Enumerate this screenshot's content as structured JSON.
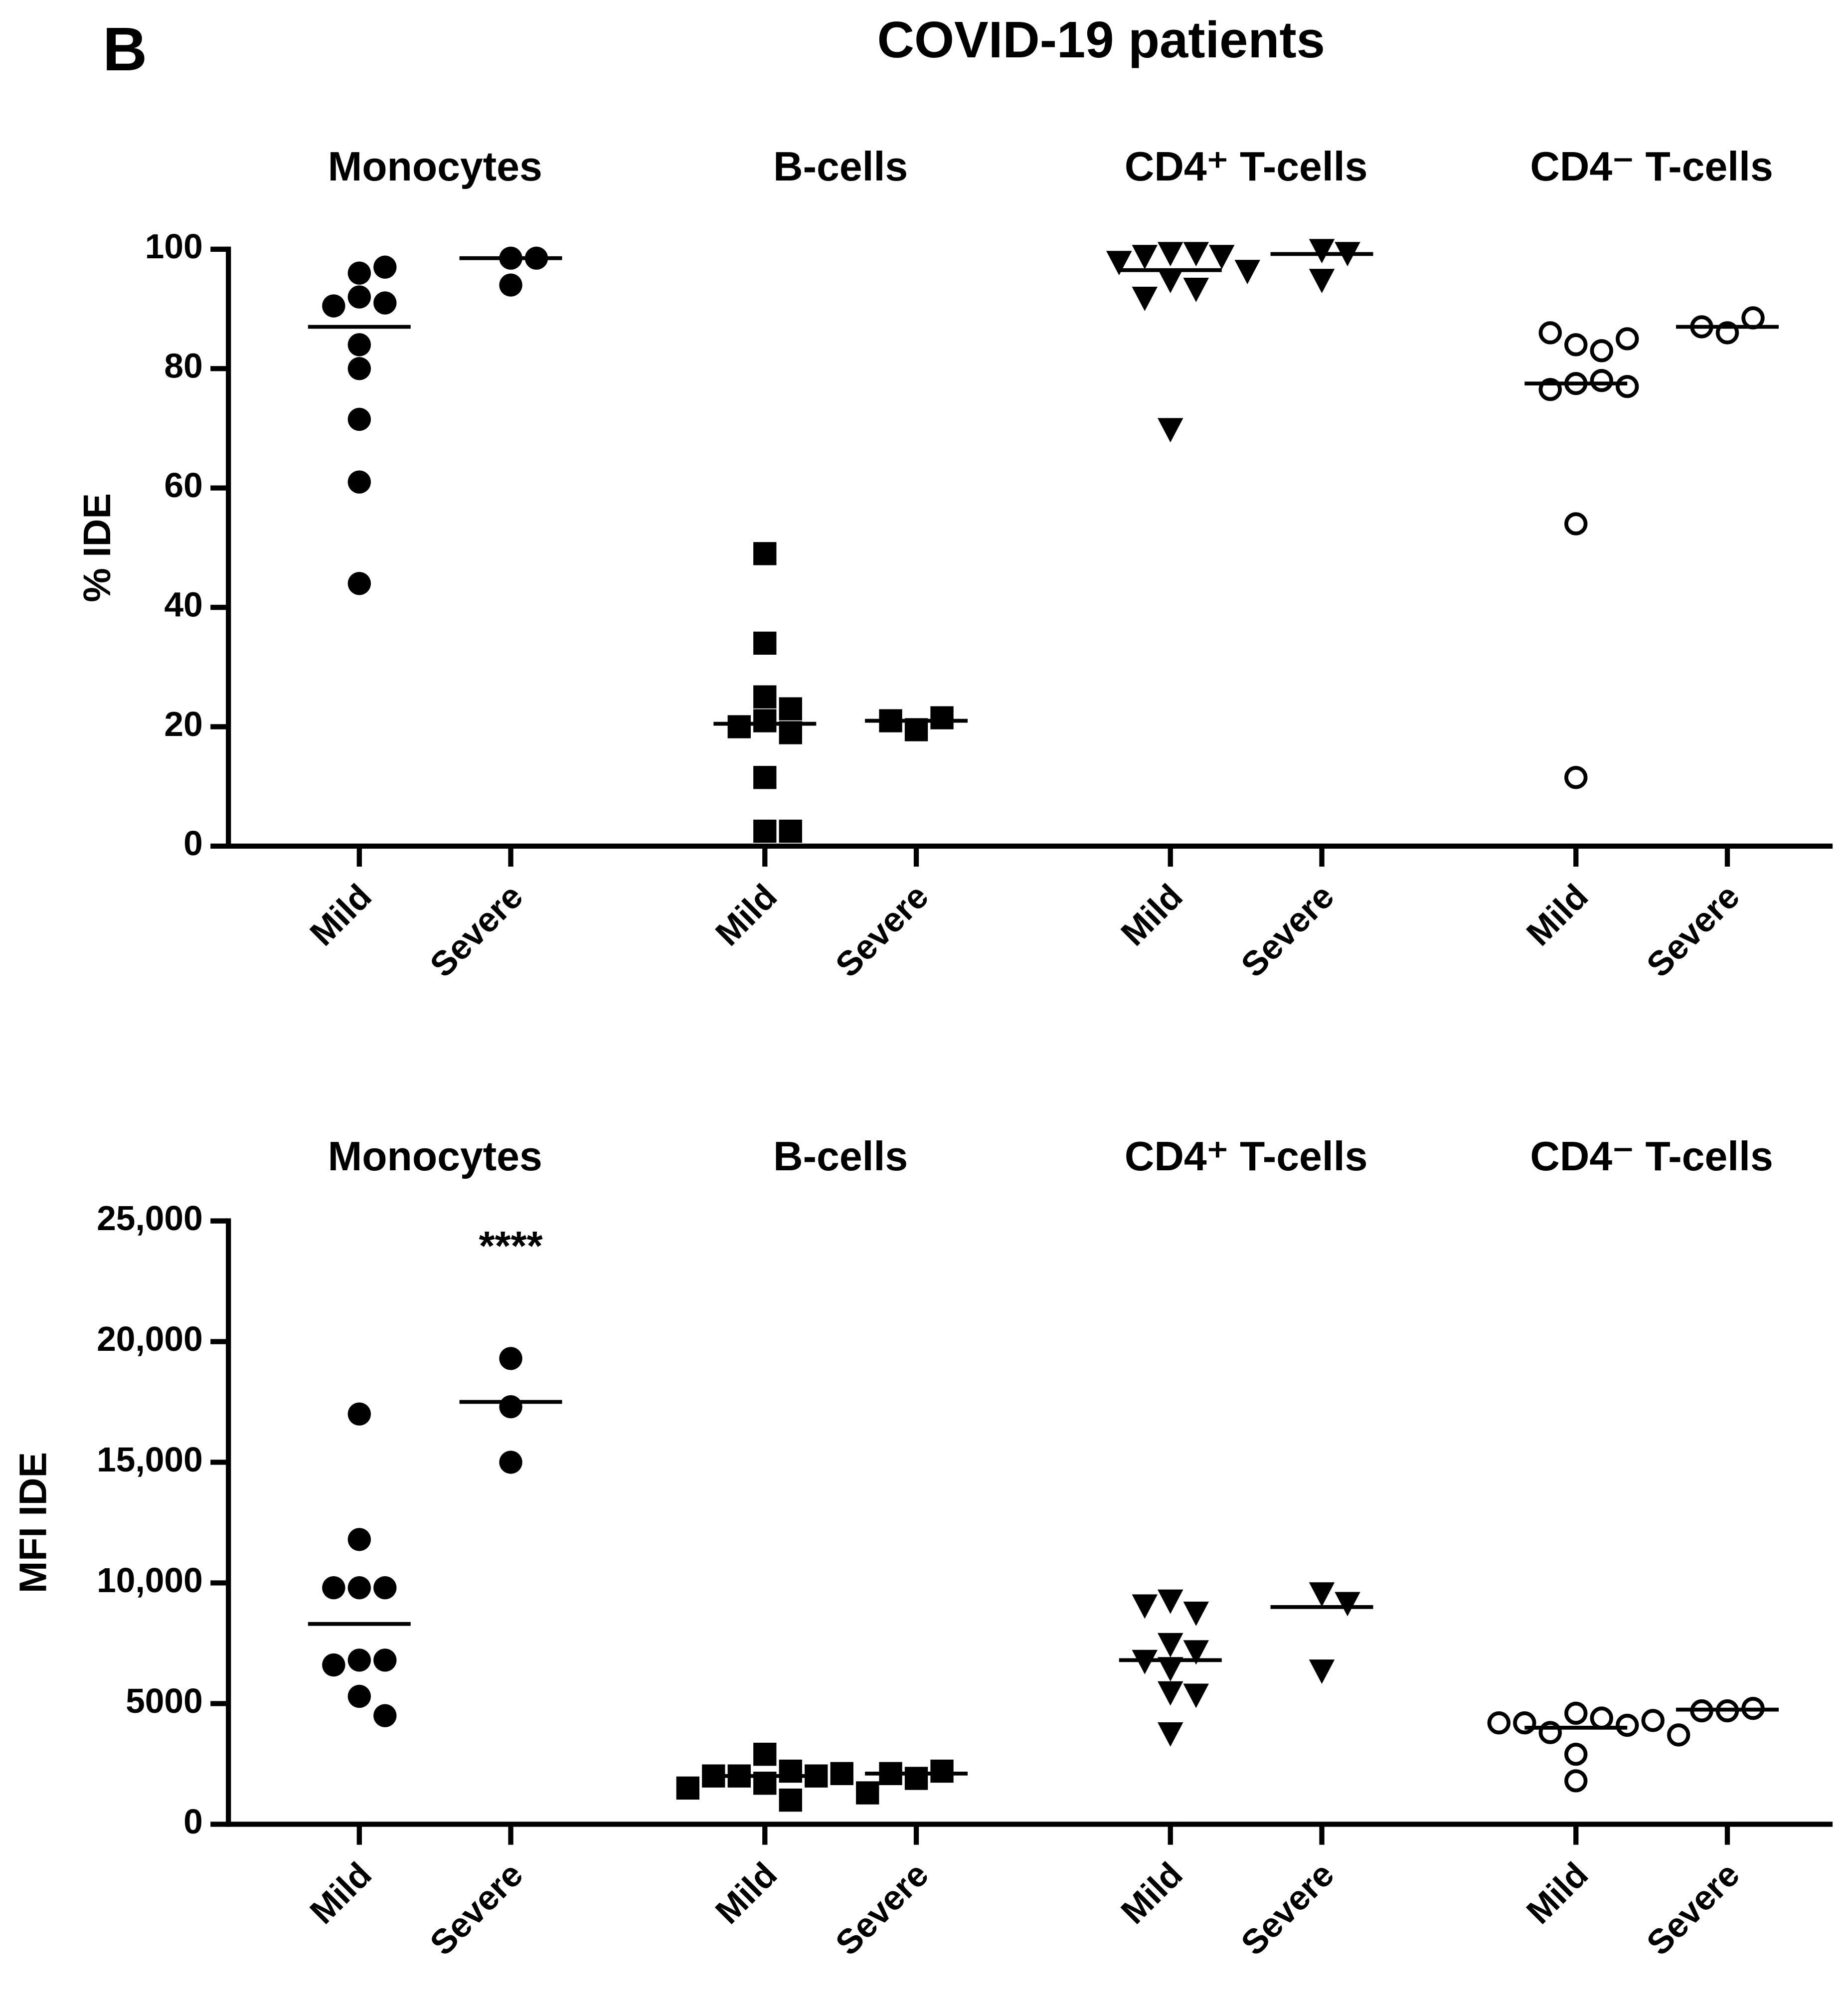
{
  "panel_label": "B",
  "title": "COVID-19 patients",
  "chart_data": [
    {
      "type": "dot",
      "ylabel": "% IDE",
      "categories": [
        "Mild",
        "Severe"
      ],
      "ylim": [
        0,
        100
      ],
      "yticks": [
        0,
        20,
        40,
        60,
        80,
        100
      ],
      "series": [
        {
          "name": "Monocytes",
          "marker": "circle",
          "color": "#000000",
          "values": [
            [
              96,
              97,
              92,
              91,
              90.5,
              84,
              80,
              71.5,
              61,
              44
            ],
            [
              98.5,
              98.5,
              94
            ]
          ],
          "medians": [
            87,
            98.5
          ]
        },
        {
          "name": "B-cells",
          "marker": "square",
          "color": "#000000",
          "values": [
            [
              49,
              34,
              25,
              23,
              21,
              19,
              20,
              11.5,
              2.5,
              2.5
            ],
            [
              19.5,
              21.5,
              21
            ]
          ],
          "medians": [
            20.5,
            21
          ]
        },
        {
          "name": "CD4⁺ T-cells",
          "marker": "triangle-down",
          "color": "#000000",
          "values": [
            [
              99.5,
              99.5,
              99,
              99,
              98,
              96.5,
              95,
              93.5,
              92,
              70
            ],
            [
              100,
              99.5,
              95
            ]
          ],
          "medians": [
            96.5,
            99.2
          ]
        },
        {
          "name": "CD4⁻ T-cells",
          "marker": "open-circle",
          "color": "#000000",
          "values": [
            [
              84,
              83,
              86,
              85,
              77.5,
              78,
              76.5,
              77,
              54,
              11.5
            ],
            [
              86,
              88.5,
              87
            ]
          ],
          "medians": [
            77.5,
            87
          ]
        }
      ]
    },
    {
      "type": "dot",
      "ylabel": "MFI IDE",
      "categories": [
        "Mild",
        "Severe"
      ],
      "annotation": "****",
      "ylim": [
        0,
        25000
      ],
      "yticks": [
        0,
        5000,
        {
          "value": 10000,
          "label": "10,000"
        },
        {
          "value": 15000,
          "label": "15,000"
        },
        {
          "value": 20000,
          "label": "20,000"
        },
        {
          "value": 25000,
          "label": "25,000"
        }
      ],
      "series": [
        {
          "name": "Monocytes",
          "marker": "circle",
          "color": "#000000",
          "values": [
            [
              17000,
              11800,
              9800,
              9800,
              9800,
              6800,
              6800,
              6600,
              5300,
              4500
            ],
            [
              19300,
              17300,
              15000
            ]
          ],
          "medians": [
            8300,
            17500
          ]
        },
        {
          "name": "B-cells",
          "marker": "square",
          "color": "#000000",
          "values": [
            [
              2900,
              2200,
              2000,
              2000,
              2000,
              2100,
              1700,
              1500,
              1300,
              1000
            ],
            [
              1900,
              2200,
              2100
            ]
          ],
          "medians": [
            2000,
            2100
          ]
        },
        {
          "name": "CD4⁺ T-cells",
          "marker": "triangle-down",
          "color": "#000000",
          "values": [
            [
              9300,
              8800,
              9100,
              7500,
              7200,
              6800,
              6500,
              5500,
              5400,
              3800
            ],
            [
              9600,
              9200,
              6400
            ]
          ],
          "medians": [
            6800,
            9000
          ]
        },
        {
          "name": "CD4⁻ T-cells",
          "marker": "open-circle",
          "color": "#000000",
          "values": [
            [
              4600,
              4400,
              3800,
              4100,
              4200,
              4300,
              4200,
              3700,
              2900,
              1800
            ],
            [
              4700,
              4800,
              4700
            ]
          ],
          "medians": [
            4000,
            4750
          ]
        }
      ]
    }
  ]
}
